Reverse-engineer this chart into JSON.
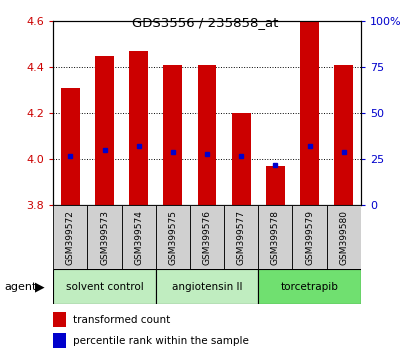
{
  "title": "GDS3556 / 235858_at",
  "samples": [
    "GSM399572",
    "GSM399573",
    "GSM399574",
    "GSM399575",
    "GSM399576",
    "GSM399577",
    "GSM399578",
    "GSM399579",
    "GSM399580"
  ],
  "transformed_counts": [
    4.31,
    4.45,
    4.47,
    4.41,
    4.41,
    4.2,
    3.97,
    4.6,
    4.41
  ],
  "percentile_ranks": [
    27,
    30,
    32,
    29,
    28,
    27,
    22,
    32,
    29
  ],
  "bar_bottom": 3.8,
  "ylim_left": [
    3.8,
    4.6
  ],
  "ylim_right": [
    0,
    100
  ],
  "yticks_left": [
    3.8,
    4.0,
    4.2,
    4.4,
    4.6
  ],
  "yticks_right": [
    0,
    25,
    50,
    75,
    100
  ],
  "ytick_labels_right": [
    "0",
    "25",
    "50",
    "75",
    "100%"
  ],
  "groups": [
    {
      "label": "solvent control",
      "samples": [
        0,
        1,
        2
      ],
      "color": "#c0edc0"
    },
    {
      "label": "angiotensin II",
      "samples": [
        3,
        4,
        5
      ],
      "color": "#c0edc0"
    },
    {
      "label": "torcetrapib",
      "samples": [
        6,
        7,
        8
      ],
      "color": "#70e070"
    }
  ],
  "bar_color": "#cc0000",
  "percentile_color": "#0000cc",
  "bar_width": 0.55,
  "grid_color": "#000000",
  "background_color": "#ffffff",
  "plot_bg_color": "#ffffff",
  "left_label_color": "#cc0000",
  "right_label_color": "#0000cc",
  "sample_box_color": "#d0d0d0",
  "agent_label": "agent",
  "legend_items": [
    "transformed count",
    "percentile rank within the sample"
  ]
}
